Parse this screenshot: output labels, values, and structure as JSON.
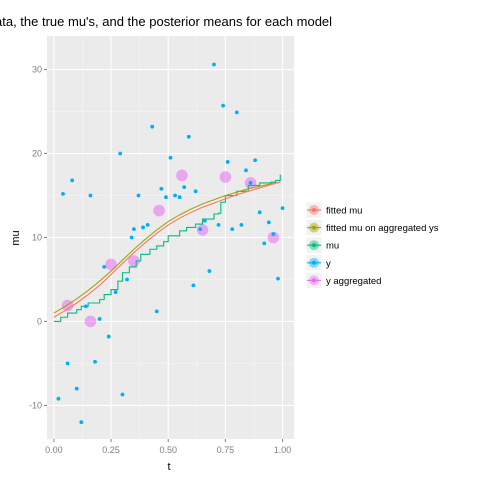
{
  "chart_data": {
    "type": "scatter",
    "title": "ata, the true mu's, and the posterior means for each model",
    "xlabel": "t",
    "ylabel": "mu",
    "xlim": [
      -0.03,
      1.05
    ],
    "ylim": [
      -14,
      34
    ],
    "x_ticks": [
      0.0,
      0.25,
      0.5,
      0.75,
      1.0
    ],
    "x_tick_labels": [
      "0.00",
      "0.25",
      "0.50",
      "0.75",
      "1.00"
    ],
    "y_ticks": [
      -10,
      0,
      10,
      20,
      30
    ],
    "y_tick_labels": [
      "-10",
      "0",
      "10",
      "20",
      "30"
    ],
    "grid": true,
    "legend_position": "right",
    "colors": {
      "fitted_mu": "#F8766D",
      "fitted_mu_agg": "#A3A500",
      "mu": "#00BF7D",
      "y": "#00B0F6",
      "y_agg": "#E76BF3"
    },
    "legend": [
      {
        "label": "fitted mu",
        "color": "#F8766D"
      },
      {
        "label": "fitted mu on aggregated ys",
        "color": "#A3A500"
      },
      {
        "label": "mu",
        "color": "#00BF7D"
      },
      {
        "label": "y",
        "color": "#00B0F6"
      },
      {
        "label": "y aggregated",
        "color": "#E76BF3"
      }
    ],
    "series": [
      {
        "name": "mu",
        "kind": "step",
        "x": [
          0.0,
          0.03,
          0.06,
          0.1,
          0.12,
          0.15,
          0.2,
          0.22,
          0.25,
          0.28,
          0.3,
          0.33,
          0.36,
          0.38,
          0.42,
          0.45,
          0.48,
          0.5,
          0.55,
          0.58,
          0.62,
          0.65,
          0.7,
          0.72,
          0.73,
          0.75,
          0.8,
          0.85,
          0.9,
          0.95,
          0.97,
          0.99
        ],
        "y": [
          0.0,
          0.5,
          1.0,
          1.4,
          1.8,
          2.2,
          2.6,
          3.2,
          3.8,
          4.8,
          5.8,
          6.5,
          7.2,
          8.0,
          8.6,
          9.0,
          9.5,
          10.2,
          10.8,
          11.2,
          11.6,
          12.2,
          12.8,
          12.9,
          14.2,
          15.0,
          15.5,
          16.2,
          16.5,
          16.6,
          16.8,
          17.5
        ]
      },
      {
        "name": "fitted mu",
        "kind": "line",
        "x": [
          0.0,
          0.05,
          0.1,
          0.15,
          0.2,
          0.25,
          0.3,
          0.35,
          0.4,
          0.45,
          0.5,
          0.55,
          0.6,
          0.65,
          0.7,
          0.75,
          0.8,
          0.85,
          0.9,
          0.95,
          0.99
        ],
        "y": [
          0.5,
          1.3,
          2.2,
          3.2,
          4.3,
          5.6,
          6.9,
          8.2,
          9.4,
          10.5,
          11.5,
          12.3,
          13.0,
          13.6,
          14.1,
          14.6,
          15.1,
          15.5,
          15.9,
          16.3,
          16.6
        ]
      },
      {
        "name": "fitted mu on aggregated ys",
        "kind": "line",
        "x": [
          0.0,
          0.05,
          0.1,
          0.15,
          0.2,
          0.25,
          0.3,
          0.35,
          0.4,
          0.45,
          0.5,
          0.55,
          0.6,
          0.65,
          0.7,
          0.75,
          0.8,
          0.85,
          0.9,
          0.95,
          0.99
        ],
        "y": [
          1.0,
          1.8,
          2.7,
          3.7,
          4.8,
          6.0,
          7.3,
          8.6,
          9.8,
          10.9,
          11.9,
          12.7,
          13.4,
          14.0,
          14.5,
          15.0,
          15.4,
          15.8,
          16.1,
          16.4,
          16.6
        ]
      },
      {
        "name": "y",
        "kind": "points",
        "x": [
          0.02,
          0.04,
          0.06,
          0.08,
          0.1,
          0.12,
          0.14,
          0.16,
          0.18,
          0.2,
          0.22,
          0.24,
          0.27,
          0.29,
          0.3,
          0.32,
          0.34,
          0.35,
          0.37,
          0.39,
          0.41,
          0.43,
          0.45,
          0.47,
          0.49,
          0.51,
          0.53,
          0.55,
          0.57,
          0.59,
          0.61,
          0.62,
          0.64,
          0.66,
          0.68,
          0.7,
          0.72,
          0.74,
          0.76,
          0.78,
          0.8,
          0.82,
          0.84,
          0.86,
          0.88,
          0.9,
          0.92,
          0.94,
          0.96,
          0.98,
          1.0
        ],
        "y": [
          -9.2,
          15.2,
          -5.0,
          16.8,
          -8.0,
          -12.0,
          1.8,
          15.0,
          -4.8,
          0.3,
          6.5,
          -1.8,
          3.5,
          20.0,
          -8.7,
          5.0,
          10.0,
          11.0,
          15.0,
          11.2,
          11.5,
          23.2,
          1.2,
          15.8,
          14.8,
          19.5,
          15.0,
          14.8,
          16.0,
          22.0,
          4.3,
          15.5,
          11.0,
          12.0,
          6.0,
          30.6,
          11.5,
          25.7,
          19.0,
          11.0,
          24.9,
          11.5,
          18.0,
          16.5,
          19.2,
          13.0,
          9.3,
          11.8,
          10.4,
          5.1,
          13.5
        ]
      },
      {
        "name": "y aggregated",
        "kind": "points",
        "x": [
          0.06,
          0.16,
          0.25,
          0.35,
          0.46,
          0.56,
          0.65,
          0.75,
          0.86,
          0.96
        ],
        "y": [
          1.9,
          0.0,
          6.8,
          7.2,
          13.2,
          17.4,
          10.9,
          17.2,
          16.5,
          10.0
        ]
      }
    ]
  }
}
